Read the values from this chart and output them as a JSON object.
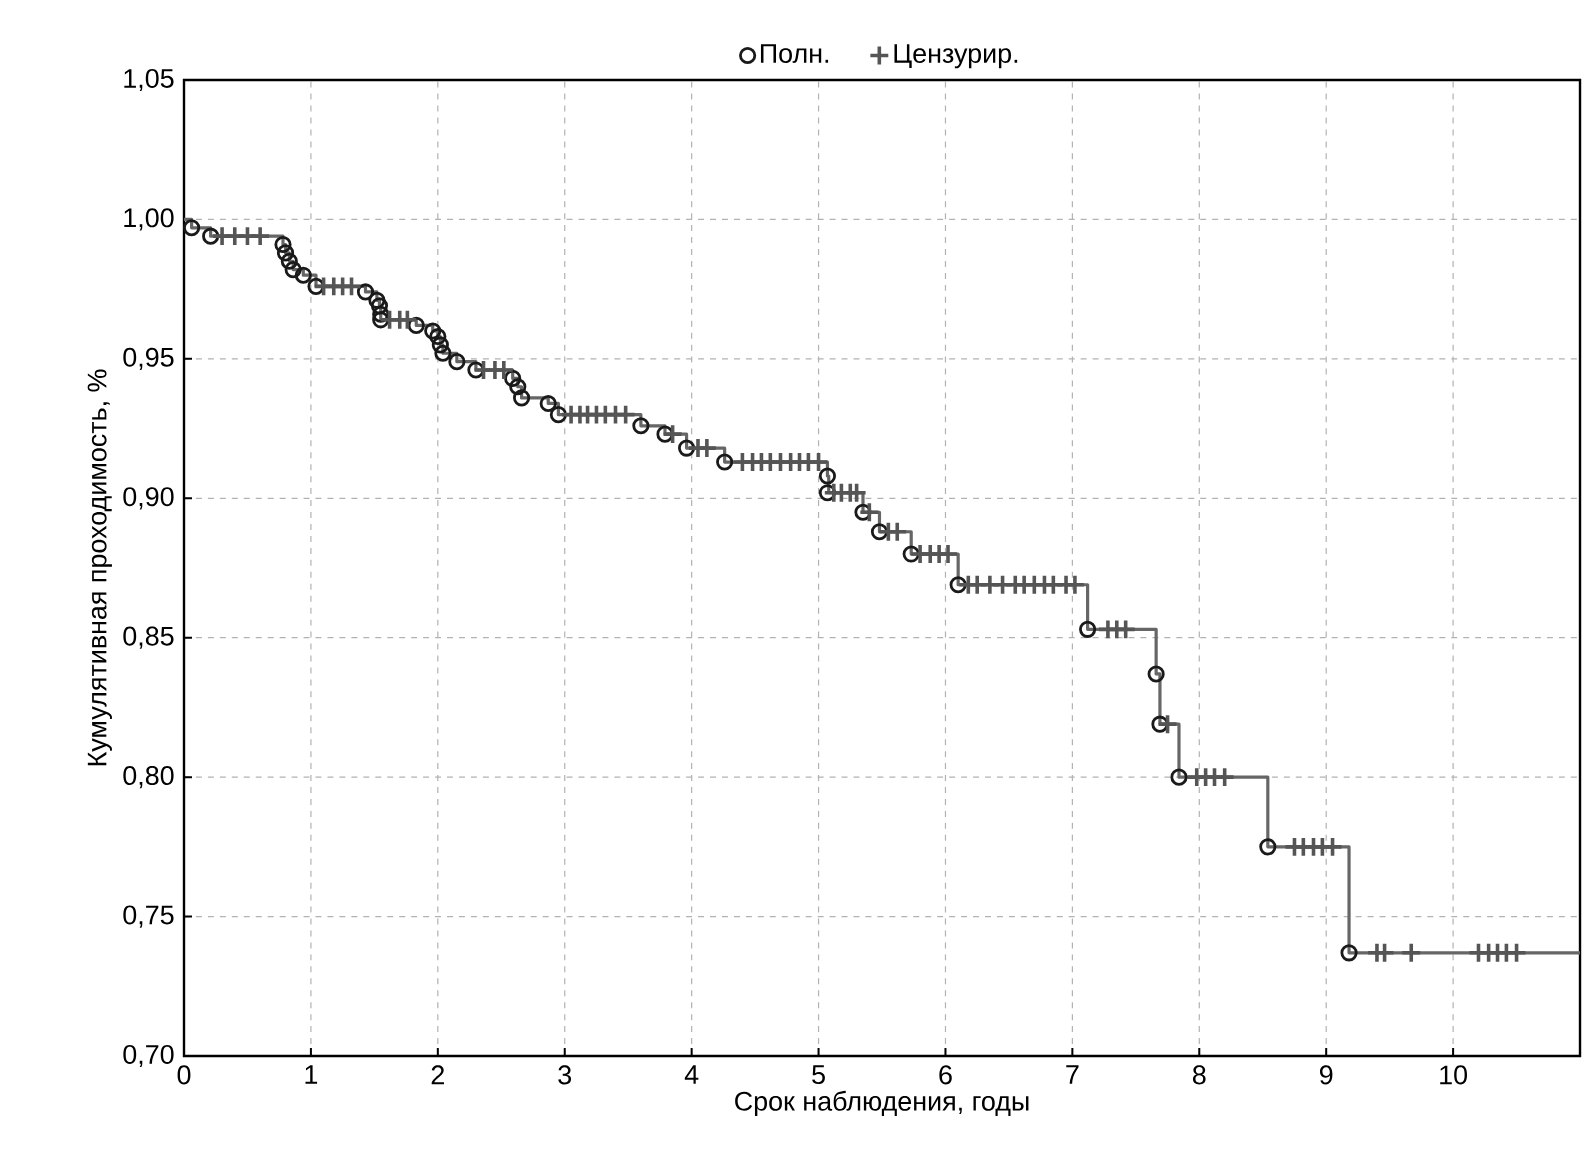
{
  "chart_data": {
    "type": "step",
    "xlabel": "Срок наблюдения, годы",
    "ylabel": "Кумулятивная проходимость, %",
    "xlim": [
      0,
      11
    ],
    "ylim": [
      0.7,
      1.05
    ],
    "xticks": [
      0,
      1,
      2,
      3,
      4,
      5,
      6,
      7,
      8,
      9,
      10
    ],
    "yticks": [
      {
        "value": 0.7,
        "label": "0,70"
      },
      {
        "value": 0.75,
        "label": "0,75"
      },
      {
        "value": 0.8,
        "label": "0,80"
      },
      {
        "value": 0.85,
        "label": "0,85"
      },
      {
        "value": 0.9,
        "label": "0,90"
      },
      {
        "value": 0.95,
        "label": "0,95"
      },
      {
        "value": 1.0,
        "label": "1,00"
      },
      {
        "value": 1.05,
        "label": "1,05"
      }
    ],
    "grid": true,
    "legend": "top",
    "series": [
      {
        "color": "#666666",
        "marker": "none",
        "line_style": "solid",
        "x": [
          0,
          0.06,
          0.21,
          0.78,
          0.8,
          0.83,
          0.86,
          0.94,
          1.04,
          1.43,
          1.52,
          1.54,
          1.55,
          1.83,
          1.96,
          2.0,
          2.02,
          2.04,
          2.15,
          2.3,
          2.59,
          2.63,
          2.66,
          2.87,
          2.95,
          3.6,
          3.79,
          3.96,
          4.26,
          5.07,
          5.08,
          5.35,
          5.48,
          5.73,
          6.1,
          7.12,
          7.66,
          7.69,
          7.84,
          8.54,
          9.18,
          11
        ],
        "values": [
          1.0,
          0.997,
          0.994,
          0.991,
          0.988,
          0.985,
          0.982,
          0.98,
          0.976,
          0.974,
          0.971,
          0.969,
          0.964,
          0.962,
          0.96,
          0.958,
          0.955,
          0.952,
          0.949,
          0.946,
          0.943,
          0.94,
          0.936,
          0.934,
          0.93,
          0.926,
          0.923,
          0.918,
          0.913,
          0.908,
          0.902,
          0.895,
          0.888,
          0.88,
          0.869,
          0.853,
          0.837,
          0.819,
          0.8,
          0.775,
          0.737,
          0.737
        ]
      },
      {
        "type": "scatter",
        "name": "Полн.",
        "color": "#1a1a1a",
        "marker": "circle",
        "x": [
          0.06,
          0.21,
          0.78,
          0.8,
          0.83,
          0.86,
          0.94,
          1.04,
          1.43,
          1.52,
          1.54,
          1.55,
          1.55,
          1.83,
          1.96,
          2.0,
          2.02,
          2.04,
          2.15,
          2.3,
          2.59,
          2.63,
          2.66,
          2.87,
          2.95,
          3.6,
          3.79,
          3.96,
          4.26,
          5.07,
          5.07,
          5.35,
          5.48,
          5.73,
          6.1,
          7.12,
          7.66,
          7.69,
          7.84,
          8.54,
          9.18
        ],
        "values": [
          0.997,
          0.994,
          0.991,
          0.988,
          0.985,
          0.982,
          0.98,
          0.976,
          0.974,
          0.971,
          0.969,
          0.966,
          0.964,
          0.962,
          0.96,
          0.958,
          0.955,
          0.952,
          0.949,
          0.946,
          0.943,
          0.94,
          0.936,
          0.934,
          0.93,
          0.926,
          0.923,
          0.918,
          0.913,
          0.908,
          0.902,
          0.895,
          0.888,
          0.88,
          0.869,
          0.853,
          0.837,
          0.819,
          0.8,
          0.775,
          0.737
        ]
      },
      {
        "type": "scatter",
        "name": "Цензурир.",
        "color": "#555555",
        "marker": "cross",
        "x": [
          0.3,
          0.4,
          0.5,
          0.6,
          1.1,
          1.18,
          1.25,
          1.32,
          1.62,
          1.7,
          1.76,
          2.36,
          2.45,
          2.52,
          3.05,
          3.12,
          3.18,
          3.25,
          3.32,
          3.4,
          3.48,
          3.85,
          4.05,
          4.12,
          4.4,
          4.48,
          4.55,
          4.62,
          4.7,
          4.78,
          4.85,
          4.92,
          5.0,
          5.12,
          5.18,
          5.25,
          5.3,
          5.4,
          5.55,
          5.62,
          5.8,
          5.88,
          5.95,
          6.02,
          6.18,
          6.25,
          6.35,
          6.45,
          6.55,
          6.62,
          6.7,
          6.78,
          6.85,
          6.95,
          7.02,
          7.28,
          7.35,
          7.42,
          7.75,
          7.98,
          8.05,
          8.12,
          8.2,
          8.75,
          8.82,
          8.9,
          8.97,
          9.05,
          9.4,
          9.46,
          9.67,
          10.2,
          10.28,
          10.35,
          10.42,
          10.5
        ],
        "values": [
          0.994,
          0.994,
          0.994,
          0.994,
          0.976,
          0.976,
          0.976,
          0.976,
          0.964,
          0.964,
          0.964,
          0.946,
          0.946,
          0.946,
          0.93,
          0.93,
          0.93,
          0.93,
          0.93,
          0.93,
          0.93,
          0.923,
          0.918,
          0.918,
          0.913,
          0.913,
          0.913,
          0.913,
          0.913,
          0.913,
          0.913,
          0.913,
          0.913,
          0.902,
          0.902,
          0.902,
          0.902,
          0.895,
          0.888,
          0.888,
          0.88,
          0.88,
          0.88,
          0.88,
          0.869,
          0.869,
          0.869,
          0.869,
          0.869,
          0.869,
          0.869,
          0.869,
          0.869,
          0.869,
          0.869,
          0.853,
          0.853,
          0.853,
          0.819,
          0.8,
          0.8,
          0.8,
          0.8,
          0.775,
          0.775,
          0.775,
          0.775,
          0.775,
          0.737,
          0.737,
          0.737,
          0.737,
          0.737,
          0.737,
          0.737,
          0.737
        ]
      }
    ]
  }
}
